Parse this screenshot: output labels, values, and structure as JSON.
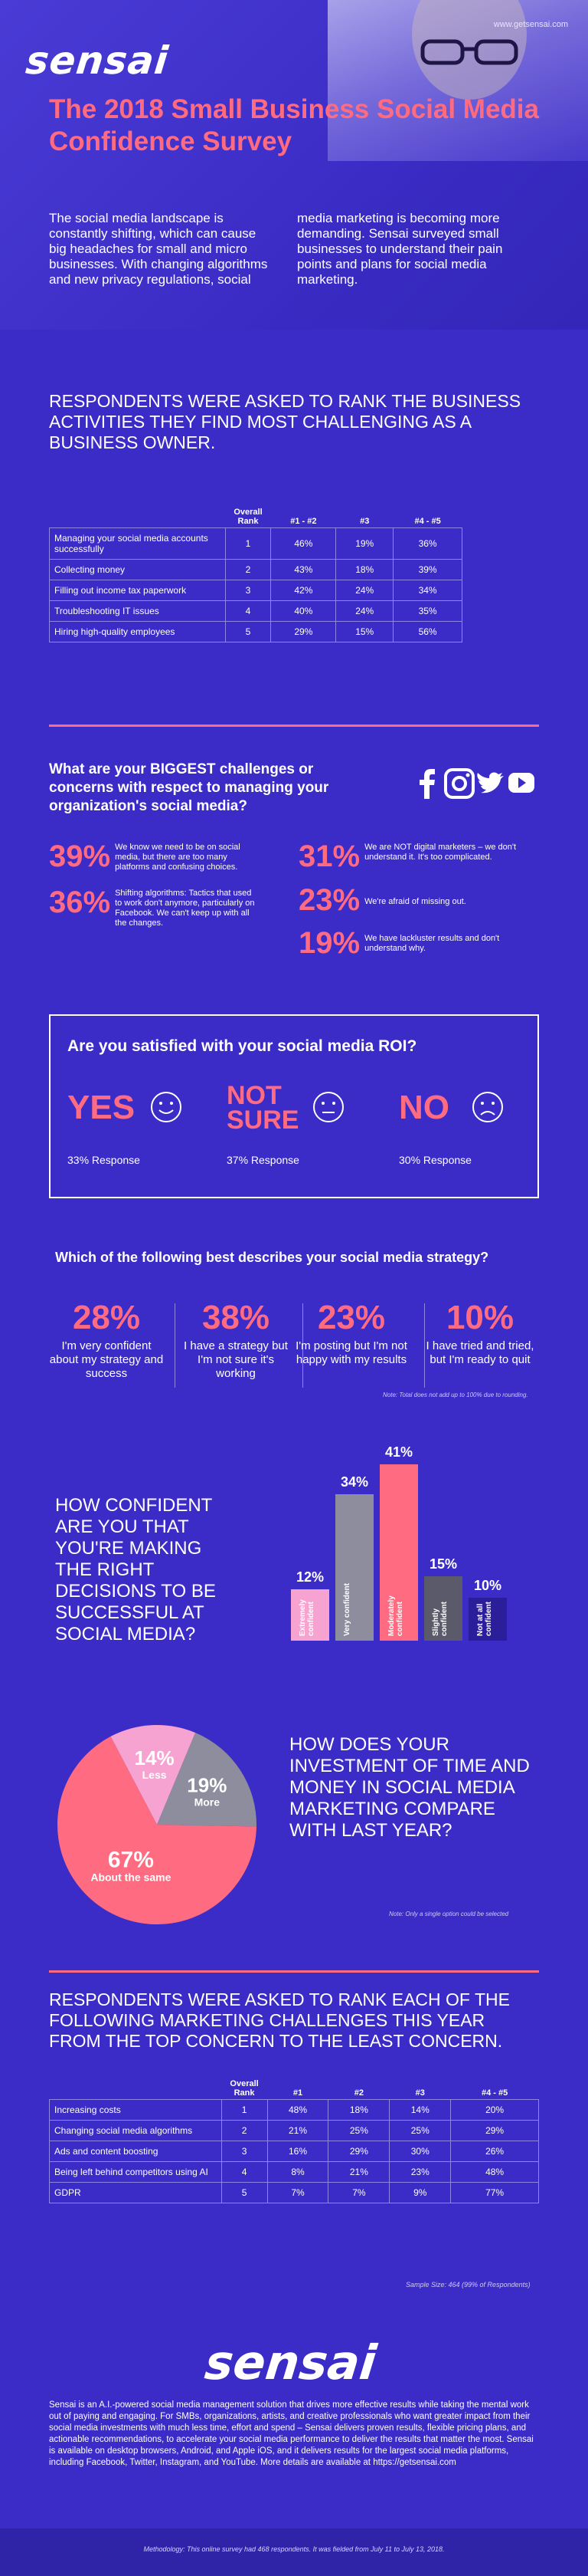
{
  "header": {
    "logo": "sensai",
    "url": "www.getsensai.com",
    "title": "The 2018 Small Business Social Media Confidence Survey",
    "intro_col1": "The social media landscape is constantly shifting, which can cause big headaches for small and micro businesses. With changing algorithms and new privacy regulations, social",
    "intro_col2": "media marketing is becoming more demanding. Sensai surveyed small businesses to understand their pain points and plans for social media marketing."
  },
  "section1": {
    "heading": "RESPONDENTS WERE ASKED TO RANK THE BUSINESS ACTIVITIES THEY FIND MOST CHALLENGING AS A BUSINESS OWNER.",
    "columns": [
      "",
      "Overall Rank",
      "#1 - #2",
      "#3",
      "#4 - #5"
    ],
    "rows": [
      [
        "Managing your social media accounts successfully",
        "1",
        "46%",
        "19%",
        "36%"
      ],
      [
        "Collecting money",
        "2",
        "43%",
        "18%",
        "39%"
      ],
      [
        "Filling out income tax paperwork",
        "3",
        "42%",
        "24%",
        "34%"
      ],
      [
        "Troubleshooting IT issues",
        "4",
        "40%",
        "24%",
        "35%"
      ],
      [
        "Hiring high-quality employees",
        "5",
        "29%",
        "15%",
        "56%"
      ]
    ]
  },
  "challenges": {
    "question": "What are your BIGGEST challenges or concerns with respect to managing your organization's social media?",
    "social_icons": [
      "facebook-icon",
      "instagram-icon",
      "twitter-icon",
      "youtube-icon"
    ],
    "items": [
      {
        "pct": "39%",
        "text": "We know we need to be on social media, but there are too many platforms and confusing choices."
      },
      {
        "pct": "36%",
        "text": "Shifting algorithms: Tactics that used to work don't anymore, particularly on Facebook. We can't keep up with all the changes."
      },
      {
        "pct": "31%",
        "text": "We are NOT digital marketers – we don't understand it. It's too complicated."
      },
      {
        "pct": "23%",
        "text": "We're afraid of missing out."
      },
      {
        "pct": "19%",
        "text": "We have lackluster results and don't understand why."
      }
    ]
  },
  "roi": {
    "question": "Are you satisfied with your social media ROI?",
    "yes": "YES",
    "yes_resp": "33% Response",
    "notsure_1": "NOT",
    "notsure_2": "SURE",
    "notsure_resp": "37% Response",
    "no": "NO",
    "no_resp": "30% Response"
  },
  "strategy": {
    "question": "Which of the following best describes your social media strategy?",
    "items": [
      {
        "pct": "28%",
        "text": "I'm very confident about my strategy and success"
      },
      {
        "pct": "38%",
        "text": "I have a strategy but I'm not sure it's working"
      },
      {
        "pct": "23%",
        "text": "I'm posting but I'm not happy with my results"
      },
      {
        "pct": "10%",
        "text": "I have tried and tried, but I'm ready to quit"
      }
    ],
    "note": "Note: Total does not add up to 100% due to rounding."
  },
  "confidence": {
    "question": "HOW CONFIDENT ARE YOU THAT YOU'RE MAKING THE RIGHT DECISIONS TO BE SUCCESSFUL AT SOCIAL MEDIA?"
  },
  "investment": {
    "question": "HOW DOES YOUR INVESTMENT OF TIME AND MONEY IN SOCIAL MEDIA MARKETING COMPARE WITH LAST YEAR?",
    "note": "Note: Only a single option could be selected"
  },
  "chart_data": [
    {
      "type": "bar",
      "categories": [
        "Extremely confident",
        "Very confident",
        "Moderately confident",
        "Slightly confident",
        "Not at all confident"
      ],
      "values": [
        12,
        34,
        41,
        15,
        10
      ],
      "value_labels": [
        "12%",
        "34%",
        "41%",
        "15%",
        "10%"
      ],
      "colors": [
        "#f7a3d2",
        "#8d8d9e",
        "#ff6b80",
        "#5a5a6a",
        "#2a1e9a"
      ],
      "ylim": [
        0,
        41
      ]
    },
    {
      "type": "pie",
      "categories": [
        "Less",
        "More",
        "About the same"
      ],
      "values": [
        14,
        19,
        67
      ],
      "value_labels": [
        "14%",
        "19%",
        "67%"
      ],
      "colors": [
        "#f7a3d2",
        "#8d8d9e",
        "#ff6b80"
      ]
    }
  ],
  "section2": {
    "heading": "RESPONDENTS WERE ASKED TO RANK EACH OF THE FOLLOWING MARKETING CHALLENGES THIS YEAR FROM THE TOP CONCERN TO THE LEAST CONCERN.",
    "columns": [
      "",
      "Overall Rank",
      "#1",
      "#2",
      "#3",
      "#4 - #5"
    ],
    "rows": [
      [
        "Increasing costs",
        "1",
        "48%",
        "18%",
        "14%",
        "20%"
      ],
      [
        "Changing social media algorithms",
        "2",
        "21%",
        "25%",
        "25%",
        "29%"
      ],
      [
        "Ads and content boosting",
        "3",
        "16%",
        "29%",
        "30%",
        "26%"
      ],
      [
        "Being left behind competitors using AI",
        "4",
        "8%",
        "21%",
        "23%",
        "48%"
      ],
      [
        "GDPR",
        "5",
        "7%",
        "7%",
        "9%",
        "77%"
      ]
    ],
    "sample": "Sample Size: 464 (99% of Respondents)"
  },
  "footer": {
    "logo": "sensai",
    "about": "Sensai is an A.I.-powered social media management solution that drives more effective results while taking the mental work out of paying and engaging. For SMBs, organizations, artists, and creative professionals who want greater impact from their social media investments with much less time, effort and spend – Sensai delivers proven results, flexible pricing plans, and actionable recommendations, to accelerate your social media performance to deliver the results that matter the most. Sensai is available on desktop browsers, Android, and Apple iOS, and it delivers results for the largest social media platforms, including Facebook, Twitter, Instagram, and YouTube. More details are available at https://getsensai.com",
    "methodology": "Methodology: This online survey had 468 respondents. It was fielded from July 11 to July 13, 2018."
  }
}
